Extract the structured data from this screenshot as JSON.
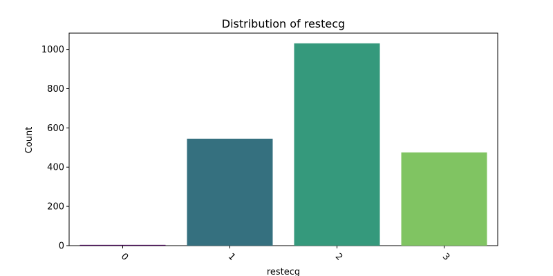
{
  "chart_data": {
    "type": "bar",
    "title": "Distribution of restecg",
    "xlabel": "restecg",
    "ylabel": "Count",
    "categories": [
      "0",
      "1",
      "2",
      "3"
    ],
    "values": [
      4,
      545,
      1031,
      475
    ],
    "colors": [
      "#440154",
      "#35707f",
      "#35997c",
      "#80c462"
    ],
    "ylim": [
      0,
      1083
    ],
    "yticks": [
      0,
      200,
      400,
      600,
      800,
      1000
    ],
    "grid": false,
    "legend": "none"
  }
}
